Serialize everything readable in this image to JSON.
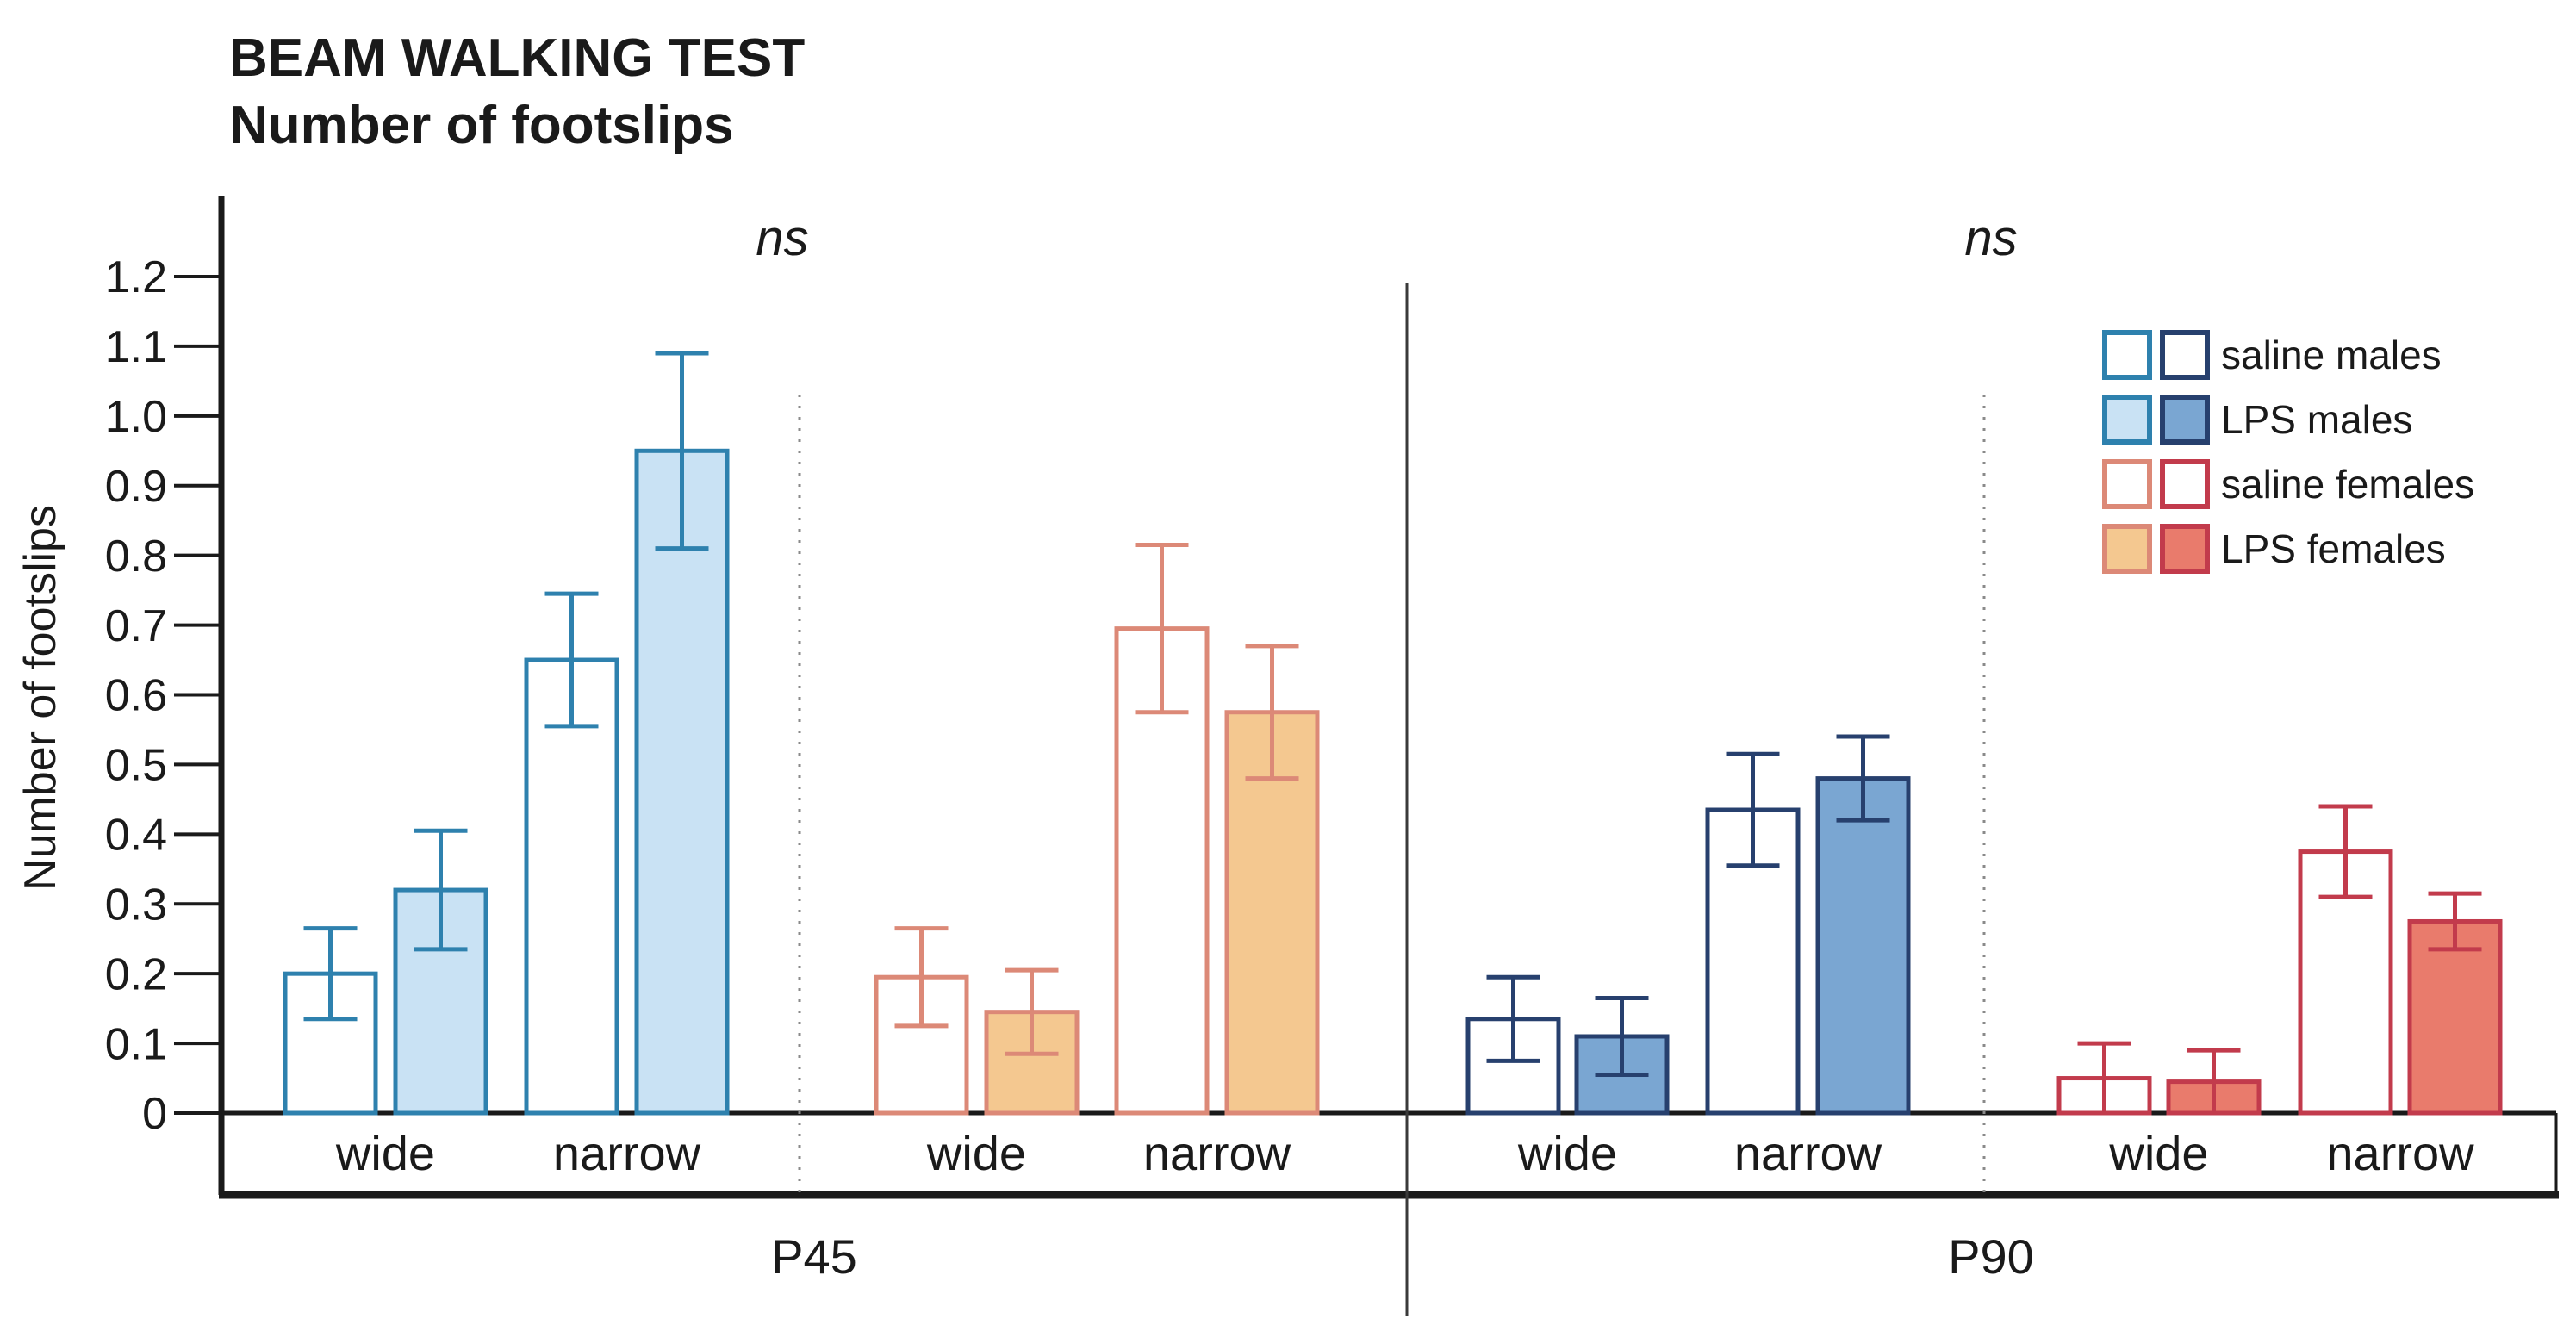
{
  "title": {
    "line1": "BEAM WALKING TEST",
    "line2": "Number of footslips"
  },
  "axes": {
    "ylabel": "Number of footslips",
    "ytick_labels": [
      "0",
      "0.1",
      "0.2",
      "0.3",
      "0.4",
      "0.5",
      "0.6",
      "0.7",
      "0.8",
      "0.9",
      "1.0",
      "1.1",
      "1.2"
    ],
    "ytick_values": [
      0,
      0.1,
      0.2,
      0.3,
      0.4,
      0.5,
      0.6,
      0.7,
      0.8,
      0.9,
      1.0,
      1.1,
      1.2
    ],
    "ylim": [
      0,
      1.2
    ]
  },
  "annotations": [
    {
      "text": "ns",
      "panel": "P45"
    },
    {
      "text": "ns",
      "panel": "P90"
    }
  ],
  "colors": {
    "p45_male_border": "#2E81AE",
    "p45_male_lps_fill": "#C9E2F4",
    "p90_male_border": "#27406E",
    "p90_male_lps_fill": "#7AA6D2",
    "p45_female_border": "#DC8977",
    "p45_female_lps_fill": "#F4C890",
    "p90_female_border": "#C23B4C",
    "p90_female_lps_fill": "#E97B6C",
    "saline_fill": "#FFFFFF",
    "axis": "#1A1A1A",
    "divider_solid": "#3A3A3A",
    "divider_dotted": "#8A8A8A",
    "text": "#1A1A1A"
  },
  "legend": {
    "items": [
      {
        "label": "saline males",
        "swatches": [
          {
            "border": "#2E81AE",
            "fill": "#FFFFFF"
          },
          {
            "border": "#27406E",
            "fill": "#FFFFFF"
          }
        ]
      },
      {
        "label": "LPS males",
        "swatches": [
          {
            "border": "#2E81AE",
            "fill": "#C9E2F4"
          },
          {
            "border": "#27406E",
            "fill": "#7AA6D2"
          }
        ]
      },
      {
        "label": "saline females",
        "swatches": [
          {
            "border": "#DC8977",
            "fill": "#FFFFFF"
          },
          {
            "border": "#C23B4C",
            "fill": "#FFFFFF"
          }
        ]
      },
      {
        "label": "LPS females",
        "swatches": [
          {
            "border": "#DC8977",
            "fill": "#F4C890"
          },
          {
            "border": "#C23B4C",
            "fill": "#E97B6C"
          }
        ]
      }
    ]
  },
  "chart_data": {
    "type": "bar",
    "title": "BEAM WALKING TEST",
    "subtitle": "Number of footslips",
    "ylabel": "Number of footslips",
    "ylim": [
      0,
      1.2
    ],
    "ytick_step": 0.1,
    "error_bars": true,
    "legend_position": "top-right",
    "annotations": [
      "ns",
      "ns"
    ],
    "panels": [
      {
        "label": "P45",
        "groups": [
          {
            "name": "males",
            "categories": [
              "wide",
              "narrow"
            ],
            "series": [
              {
                "name": "saline males",
                "values": [
                  0.2,
                  0.65
                ],
                "errors": [
                  0.065,
                  0.095
                ]
              },
              {
                "name": "LPS males",
                "values": [
                  0.32,
                  0.95
                ],
                "errors": [
                  0.085,
                  0.14
                ]
              }
            ]
          },
          {
            "name": "females",
            "categories": [
              "wide",
              "narrow"
            ],
            "series": [
              {
                "name": "saline females",
                "values": [
                  0.195,
                  0.695
                ],
                "errors": [
                  0.07,
                  0.12
                ]
              },
              {
                "name": "LPS females",
                "values": [
                  0.145,
                  0.575
                ],
                "errors": [
                  0.06,
                  0.095
                ]
              }
            ]
          }
        ]
      },
      {
        "label": "P90",
        "groups": [
          {
            "name": "males",
            "categories": [
              "wide",
              "narrow"
            ],
            "series": [
              {
                "name": "saline males",
                "values": [
                  0.135,
                  0.435
                ],
                "errors": [
                  0.06,
                  0.08
                ]
              },
              {
                "name": "LPS males",
                "values": [
                  0.11,
                  0.48
                ],
                "errors": [
                  0.055,
                  0.06
                ]
              }
            ]
          },
          {
            "name": "females",
            "categories": [
              "wide",
              "narrow"
            ],
            "series": [
              {
                "name": "saline females",
                "values": [
                  0.05,
                  0.375
                ],
                "errors": [
                  0.05,
                  0.065
                ]
              },
              {
                "name": "LPS females",
                "values": [
                  0.045,
                  0.275
                ],
                "errors": [
                  0.045,
                  0.04
                ]
              }
            ]
          }
        ]
      }
    ]
  }
}
